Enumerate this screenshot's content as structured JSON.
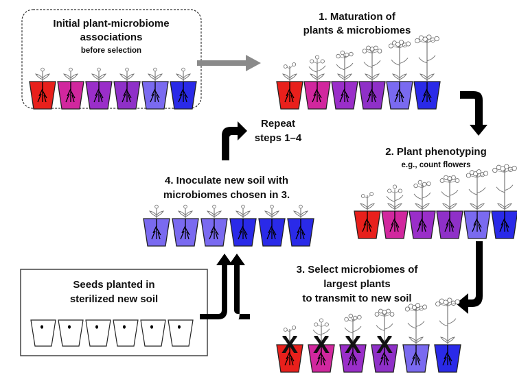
{
  "colors": {
    "pot_gradient": [
      "#e8201c",
      "#d1279e",
      "#9a2ec9",
      "#8f30c8",
      "#7a6af0",
      "#2a2ae8"
    ],
    "pot_blue_mix": [
      "#7a6af0",
      "#7a6af0",
      "#7a6af0",
      "#2a2ae8",
      "#2a2ae8",
      "#2a2ae8"
    ],
    "gray_arrow": "#8a8a8a",
    "black_arrow": "#000000"
  },
  "initial": {
    "title_line1": "Initial plant-microbiome",
    "title_line2": "associations",
    "subtitle": "before selection",
    "plant_sizes": [
      1,
      1,
      1,
      1,
      1,
      1
    ]
  },
  "step1": {
    "title_line1": "1. Maturation of",
    "title_line2": "plants & microbiomes",
    "plant_sizes": [
      2,
      3,
      4,
      5,
      6,
      7
    ]
  },
  "step2": {
    "title": "2. Plant phenotyping",
    "subtitle": "e.g., count flowers",
    "plant_sizes": [
      2,
      3,
      4,
      5,
      6,
      7
    ]
  },
  "step3": {
    "title_line1": "3. Select microbiomes of",
    "title_line2": "largest plants",
    "title_line3": "to transmit to new soil",
    "plant_sizes": [
      2,
      3,
      4,
      5,
      6,
      7
    ],
    "crossed_out": [
      true,
      true,
      true,
      true,
      false,
      false
    ],
    "cross_mark": "X"
  },
  "step4": {
    "title_line1": "4. Inoculate new soil with",
    "title_line2": "microbiomes chosen in 3.",
    "plant_sizes": [
      1,
      1,
      1,
      1,
      1,
      1
    ]
  },
  "repeat": {
    "line1": "Repeat",
    "line2": "steps 1–4"
  },
  "seeds": {
    "title_line1": "Seeds planted in",
    "title_line2": "sterilized new soil",
    "count": 6
  }
}
